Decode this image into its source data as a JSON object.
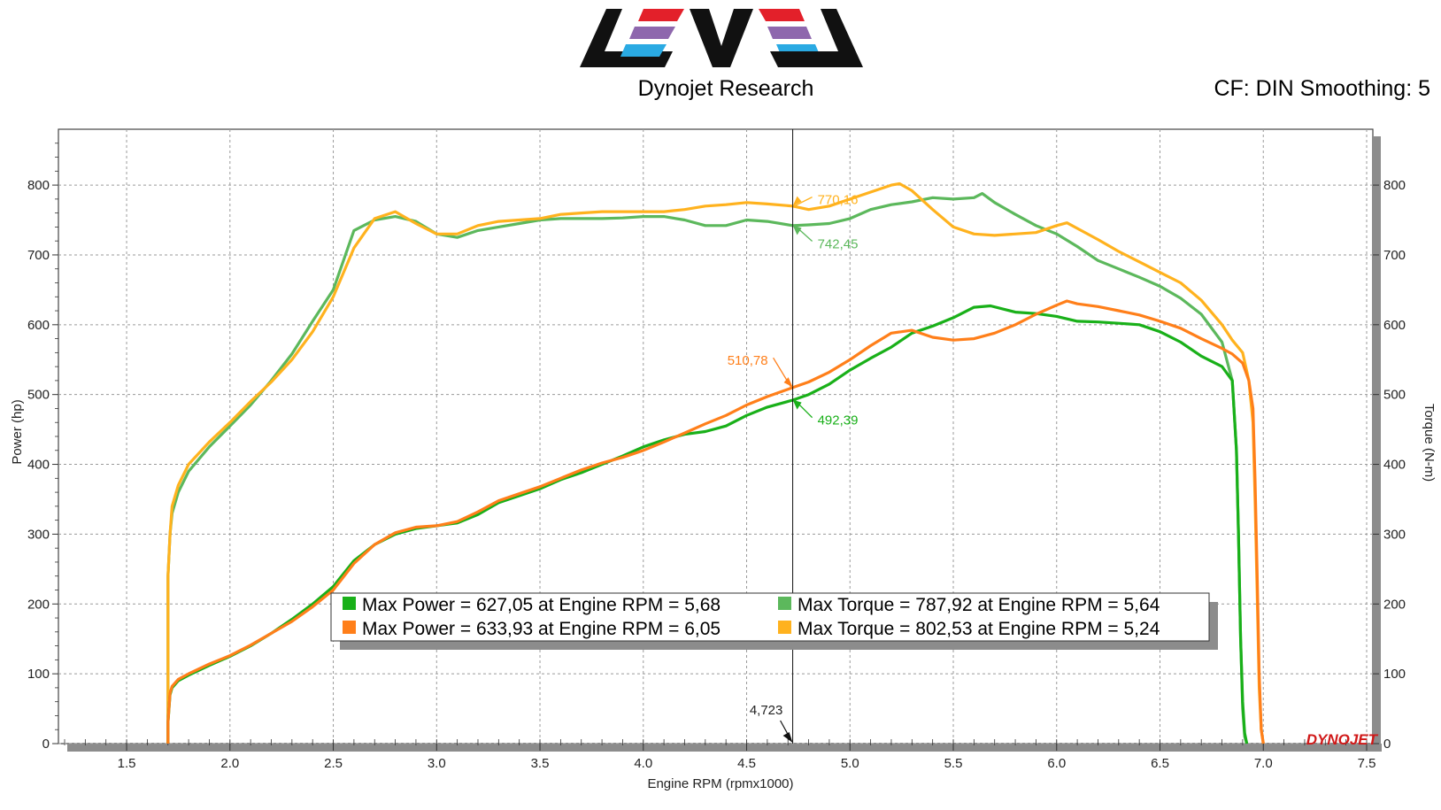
{
  "header": {
    "logo_text": "LEVEL",
    "title": "Dynojet Research",
    "correction": "CF: DIN Smoothing: 5"
  },
  "brand_mark": "DYNOJET",
  "colors": {
    "run1_power": "#19b019",
    "run1_torque": "#5cb85c",
    "run2_power": "#ff7f1a",
    "run2_torque": "#ffb21e",
    "logo_red": "#e3202a",
    "logo_purple": "#8e67ad",
    "logo_blue": "#2aaae3"
  },
  "chart_data": {
    "type": "line",
    "xlabel": "Engine RPM (rpmx1000)",
    "ylabel_left": "Power (hp)",
    "ylabel_right": "Torque (N-m)",
    "xlim": [
      1.17,
      7.53
    ],
    "ylim": [
      0,
      880
    ],
    "x_ticks": [
      "1.5",
      "2.0",
      "2.5",
      "3.0",
      "3.5",
      "4.0",
      "4.5",
      "5.0",
      "5.5",
      "6.0",
      "6.5",
      "7.0",
      "7.5"
    ],
    "y_ticks": [
      "0",
      "100",
      "200",
      "300",
      "400",
      "500",
      "600",
      "700",
      "800"
    ],
    "grid": true,
    "cursor": {
      "x": 4.723,
      "label": "4,723",
      "readouts": [
        {
          "series": 3,
          "value": 770.16,
          "label": "770,16"
        },
        {
          "series": 1,
          "value": 742.45,
          "label": "742,45"
        },
        {
          "series": 2,
          "value": 510.78,
          "label": "510,78"
        },
        {
          "series": 0,
          "value": 492.39,
          "label": "492,39"
        }
      ]
    },
    "legend": {
      "placement": "bottom-center",
      "entries": [
        "Max Power = 627,05 at Engine RPM = 5,68",
        "Max Torque = 787,92 at Engine RPM = 5,64",
        "Max Power = 633,93 at Engine RPM = 6,05",
        "Max Torque = 802,53 at Engine RPM = 5,24"
      ]
    },
    "series": [
      {
        "name": "Max Power = 627,05 at Engine RPM = 5,68",
        "axis": "left",
        "x": [
          1.7,
          1.7,
          1.71,
          1.72,
          1.75,
          1.8,
          1.9,
          2.0,
          2.1,
          2.2,
          2.3,
          2.4,
          2.5,
          2.6,
          2.7,
          2.8,
          2.9,
          3.0,
          3.1,
          3.2,
          3.3,
          3.4,
          3.5,
          3.6,
          3.7,
          3.8,
          3.9,
          4.0,
          4.1,
          4.2,
          4.3,
          4.4,
          4.5,
          4.6,
          4.723,
          4.8,
          4.9,
          5.0,
          5.1,
          5.2,
          5.3,
          5.4,
          5.5,
          5.6,
          5.68,
          5.8,
          5.9,
          6.0,
          6.1,
          6.2,
          6.3,
          6.4,
          6.5,
          6.6,
          6.7,
          6.8,
          6.85,
          6.87,
          6.88,
          6.89,
          6.9,
          6.91,
          6.92
        ],
        "y": [
          0,
          30,
          70,
          80,
          90,
          98,
          112,
          125,
          140,
          158,
          178,
          200,
          225,
          262,
          285,
          300,
          308,
          312,
          316,
          328,
          345,
          355,
          365,
          378,
          388,
          400,
          412,
          425,
          435,
          443,
          447,
          455,
          470,
          482,
          492,
          500,
          515,
          535,
          552,
          568,
          588,
          598,
          610,
          625,
          627,
          618,
          616,
          612,
          605,
          604,
          602,
          600,
          590,
          575,
          555,
          540,
          520,
          420,
          300,
          150,
          60,
          15,
          0
        ]
      },
      {
        "name": "Max Torque = 787,92 at Engine RPM = 5,64",
        "axis": "right",
        "x": [
          1.7,
          1.7,
          1.71,
          1.72,
          1.75,
          1.8,
          1.9,
          2.0,
          2.1,
          2.2,
          2.3,
          2.4,
          2.5,
          2.6,
          2.7,
          2.8,
          2.9,
          3.0,
          3.1,
          3.2,
          3.3,
          3.4,
          3.5,
          3.6,
          3.7,
          3.8,
          3.9,
          4.0,
          4.1,
          4.2,
          4.3,
          4.4,
          4.5,
          4.6,
          4.723,
          4.8,
          4.9,
          5.0,
          5.1,
          5.2,
          5.3,
          5.4,
          5.5,
          5.6,
          5.64,
          5.7,
          5.8,
          5.9,
          6.0,
          6.1,
          6.2,
          6.3,
          6.4,
          6.5,
          6.6,
          6.7,
          6.8,
          6.85,
          6.87,
          6.88,
          6.89,
          6.9,
          6.91,
          6.92
        ],
        "y": [
          0,
          240,
          300,
          330,
          360,
          390,
          425,
          455,
          485,
          520,
          558,
          605,
          650,
          735,
          750,
          755,
          748,
          730,
          725,
          735,
          740,
          745,
          750,
          752,
          752,
          752,
          753,
          755,
          755,
          750,
          742,
          742,
          750,
          748,
          742,
          743,
          745,
          752,
          765,
          772,
          776,
          782,
          780,
          782,
          788,
          775,
          758,
          742,
          730,
          712,
          692,
          680,
          668,
          655,
          638,
          615,
          575,
          520,
          420,
          300,
          150,
          50,
          10,
          0
        ]
      },
      {
        "name": "Max Power = 633,93 at Engine RPM = 6,05",
        "axis": "left",
        "x": [
          1.7,
          1.7,
          1.71,
          1.72,
          1.75,
          1.8,
          1.9,
          2.0,
          2.1,
          2.2,
          2.3,
          2.4,
          2.5,
          2.6,
          2.7,
          2.8,
          2.9,
          3.0,
          3.1,
          3.2,
          3.3,
          3.4,
          3.5,
          3.6,
          3.7,
          3.8,
          3.9,
          4.0,
          4.1,
          4.2,
          4.3,
          4.4,
          4.5,
          4.6,
          4.723,
          4.8,
          4.9,
          5.0,
          5.1,
          5.2,
          5.3,
          5.4,
          5.5,
          5.6,
          5.7,
          5.8,
          5.9,
          6.0,
          6.05,
          6.1,
          6.2,
          6.3,
          6.4,
          6.5,
          6.6,
          6.7,
          6.8,
          6.85,
          6.9,
          6.93,
          6.95,
          6.96,
          6.97,
          6.98,
          6.99,
          7.0
        ],
        "y": [
          0,
          30,
          72,
          82,
          92,
          100,
          114,
          126,
          141,
          158,
          175,
          196,
          220,
          258,
          285,
          302,
          310,
          312,
          318,
          332,
          348,
          358,
          368,
          380,
          392,
          402,
          410,
          420,
          432,
          445,
          458,
          470,
          485,
          497,
          510,
          518,
          532,
          550,
          570,
          588,
          592,
          582,
          578,
          580,
          588,
          600,
          615,
          628,
          634,
          630,
          626,
          620,
          614,
          605,
          595,
          580,
          566,
          558,
          545,
          520,
          480,
          380,
          250,
          100,
          20,
          0
        ]
      },
      {
        "name": "Max Torque = 802,53 at Engine RPM = 5,24",
        "axis": "right",
        "x": [
          1.7,
          1.7,
          1.71,
          1.72,
          1.75,
          1.8,
          1.9,
          2.0,
          2.1,
          2.2,
          2.3,
          2.4,
          2.5,
          2.6,
          2.7,
          2.8,
          2.9,
          3.0,
          3.1,
          3.2,
          3.3,
          3.4,
          3.5,
          3.6,
          3.7,
          3.8,
          3.9,
          4.0,
          4.1,
          4.2,
          4.3,
          4.4,
          4.5,
          4.6,
          4.723,
          4.8,
          4.9,
          5.0,
          5.1,
          5.2,
          5.24,
          5.3,
          5.4,
          5.5,
          5.6,
          5.7,
          5.8,
          5.9,
          6.0,
          6.05,
          6.1,
          6.2,
          6.3,
          6.4,
          6.5,
          6.6,
          6.7,
          6.8,
          6.85,
          6.9,
          6.93,
          6.95,
          6.96,
          6.97,
          6.98,
          6.99,
          7.0
        ],
        "y": [
          0,
          240,
          300,
          340,
          370,
          400,
          432,
          460,
          490,
          518,
          550,
          590,
          640,
          710,
          752,
          762,
          745,
          730,
          730,
          742,
          748,
          750,
          752,
          758,
          760,
          762,
          762,
          762,
          762,
          765,
          770,
          772,
          775,
          773,
          770,
          765,
          770,
          780,
          790,
          800,
          802,
          792,
          765,
          740,
          730,
          728,
          730,
          732,
          742,
          746,
          738,
          722,
          705,
          690,
          675,
          660,
          635,
          600,
          578,
          560,
          520,
          460,
          350,
          220,
          80,
          20,
          0
        ]
      }
    ]
  }
}
